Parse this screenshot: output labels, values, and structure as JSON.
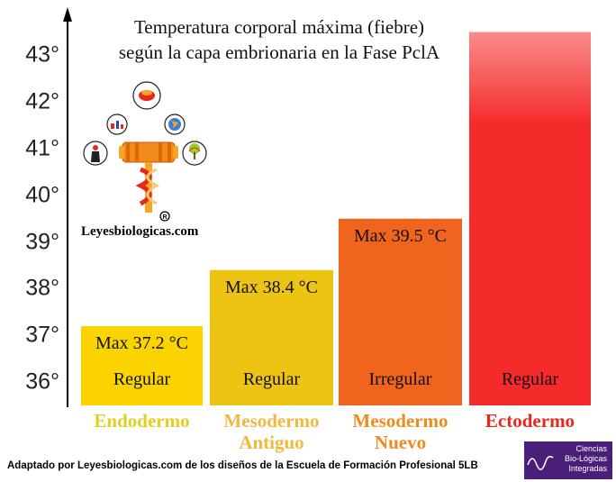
{
  "title_lines": [
    "Temperatura corporal máxima (fiebre)",
    "según la capa embrionaria en la Fase PclA"
  ],
  "brand": "Leyesbiologicas.com",
  "source": "Adaptado por Leyesbiologicas.com de los diseños de la Escuela de Formación Profesional 5LB",
  "corner_logo_lines": [
    "Ciencias",
    "Bio-Lógicas",
    "Integradas"
  ],
  "chart_data": {
    "type": "bar",
    "y_ticks": [
      "43°",
      "42°",
      "41°",
      "40°",
      "39°",
      "38°",
      "37°",
      "36°"
    ],
    "ylim": [
      35.5,
      43.8
    ],
    "categories": [
      {
        "lines": [
          "Endodermo"
        ],
        "color": "#e2cf22"
      },
      {
        "lines": [
          "Mesodermo",
          "Antiguo"
        ],
        "color": "#f2b840"
      },
      {
        "lines": [
          "Mesodermo",
          "Nuevo"
        ],
        "color": "#f08a1c"
      },
      {
        "lines": [
          "Ectodermo"
        ],
        "color": "#e8281c"
      }
    ],
    "values": [
      37.2,
      38.4,
      39.5,
      43.5
    ],
    "top_labels": [
      "Max 37.2 °C",
      "Max 38.4 °C",
      "Max 39.5 °C",
      ""
    ],
    "bottom_labels": [
      "Regular",
      "Regular",
      "Irregular",
      "Regular"
    ],
    "bar_colors": [
      "#fbd400",
      "#edc414",
      "#f0641e",
      "#f52a2a"
    ],
    "gradient_top_color": "#fa8c8c",
    "xlabel": "",
    "ylabel": ""
  }
}
